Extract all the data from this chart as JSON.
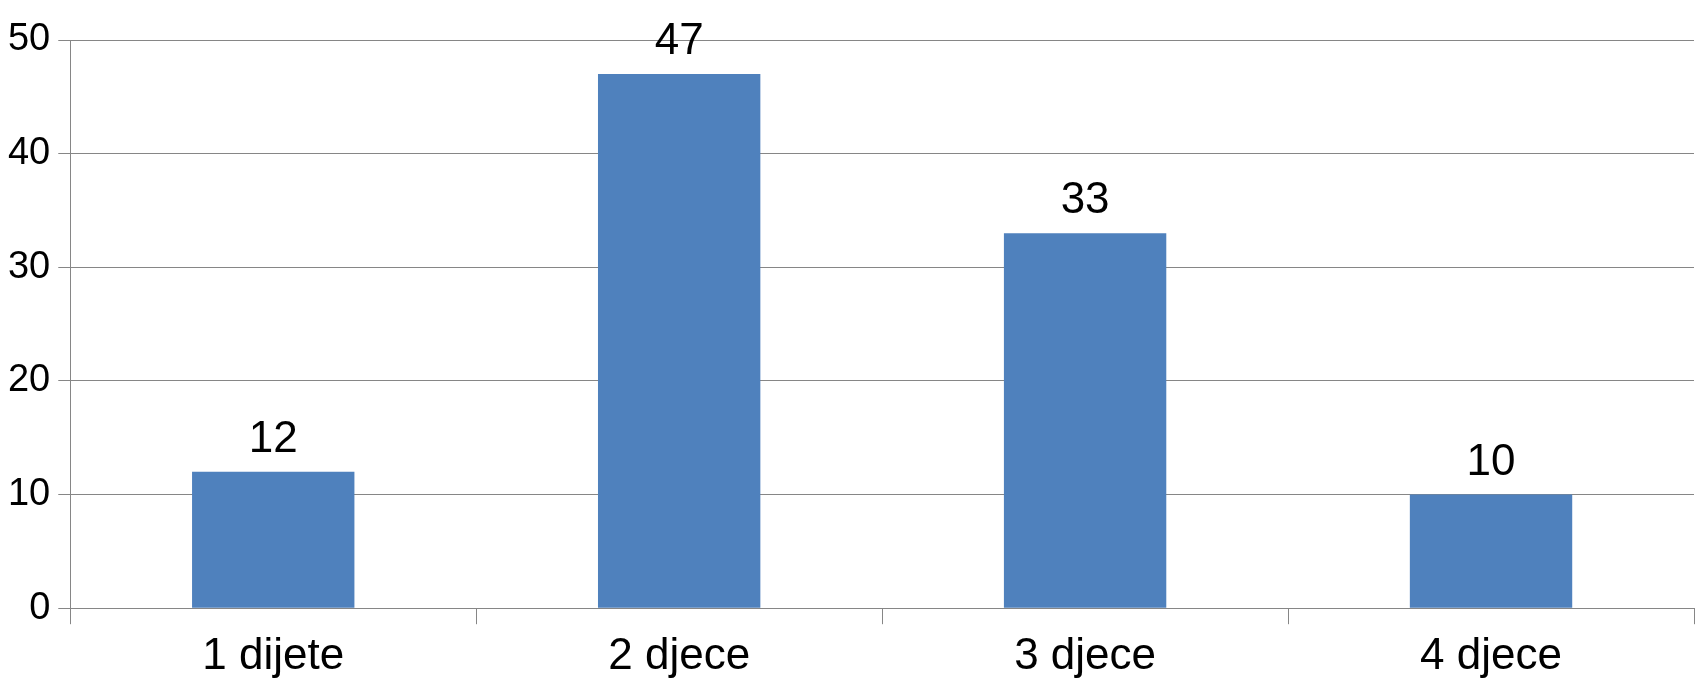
{
  "chart_data": {
    "type": "bar",
    "categories": [
      "1 dijete",
      "2 djece",
      "3 djece",
      "4 djece"
    ],
    "values": [
      12,
      47,
      33,
      10
    ],
    "color": "#4f81bd",
    "ylim": [
      0,
      50
    ],
    "yticks": [
      0,
      10,
      20,
      30,
      40,
      50
    ],
    "grid": "y",
    "data_labels": true,
    "legend": false
  }
}
